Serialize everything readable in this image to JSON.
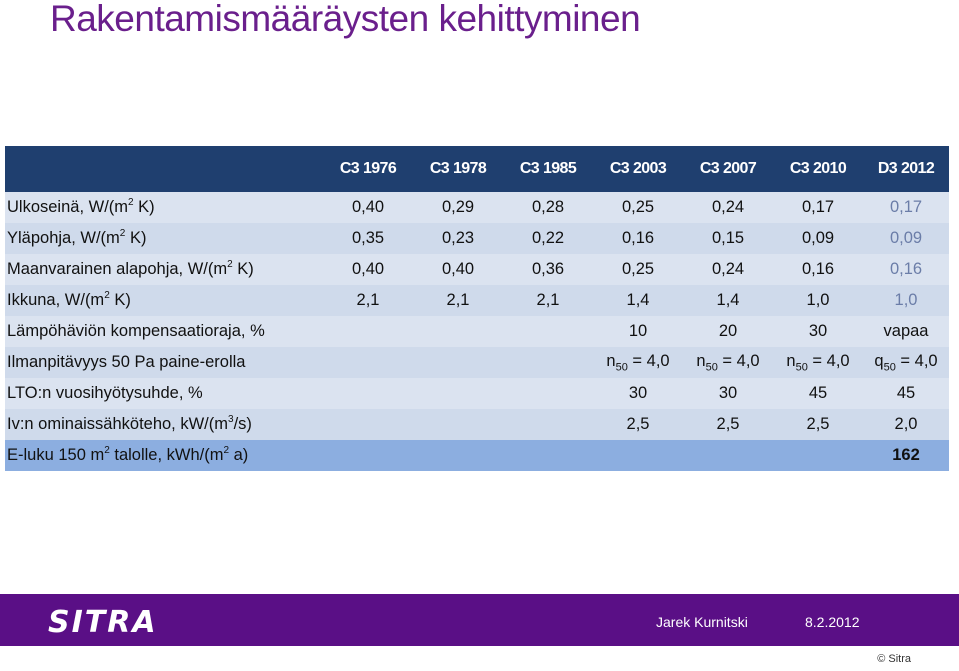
{
  "title": "Rakentamismääräysten kehittyminen",
  "table": {
    "columns": [
      "C3 1976",
      "C3 1978",
      "C3 1985",
      "C3 2003",
      "C3 2007",
      "C3 2010",
      "D3 2012"
    ],
    "rows": [
      {
        "label_pre": "Ulkoseinä, W/(m",
        "sup": "2",
        "label_post": " K)",
        "values": [
          "0,40",
          "0,29",
          "0,28",
          "0,25",
          "0,24",
          "0,17",
          "0,17"
        ]
      },
      {
        "label_pre": "Yläpohja, W/(m",
        "sup": "2",
        "label_post": " K)",
        "values": [
          "0,35",
          "0,23",
          "0,22",
          "0,16",
          "0,15",
          "0,09",
          "0,09"
        ]
      },
      {
        "label_pre": "Maanvarainen alapohja, W/(m",
        "sup": "2",
        "label_post": " K)",
        "values": [
          "0,40",
          "0,40",
          "0,36",
          "0,25",
          "0,24",
          "0,16",
          "0,16"
        ]
      },
      {
        "label_pre": "Ikkuna, W/(m",
        "sup": "2",
        "label_post": " K)",
        "values": [
          "2,1",
          "2,1",
          "2,1",
          "1,4",
          "1,4",
          "1,0",
          "1,0"
        ]
      },
      {
        "label_pre": "Lämpöhäviön kompensaatioraja, %",
        "sup": "",
        "label_post": "",
        "values": [
          "",
          "",
          "",
          "10",
          "20",
          "30",
          "vapaa"
        ]
      },
      {
        "label_pre": "Ilmanpitävyys 50 Pa paine-erolla",
        "sup": "",
        "label_post": "",
        "values": [
          "",
          "",
          "",
          "n50 = 4,0",
          "n50 = 4,0",
          "n50 = 4,0",
          "q50 = 4,0"
        ]
      },
      {
        "label_pre": "LTO:n vuosihyötysuhde, %",
        "sup": "",
        "label_post": "",
        "values": [
          "",
          "",
          "",
          "30",
          "30",
          "45",
          "45"
        ]
      },
      {
        "label_pre": "Iv:n ominaissähköteho, kW/(m",
        "sup": "3",
        "label_post": "/s)",
        "values": [
          "",
          "",
          "",
          "2,5",
          "2,5",
          "2,5",
          "2,0"
        ]
      },
      {
        "label_pre": "E-luku 150 m",
        "sup": "2",
        "label_post": " talolle, kWh/(m2 a)",
        "values": [
          "",
          "",
          "",
          "",
          "",
          "",
          "162"
        ]
      }
    ]
  },
  "footer": {
    "logo": "SITRA",
    "author": "Jarek Kurnitski",
    "date": "8.2.2012",
    "copyright": "© Sitra"
  }
}
